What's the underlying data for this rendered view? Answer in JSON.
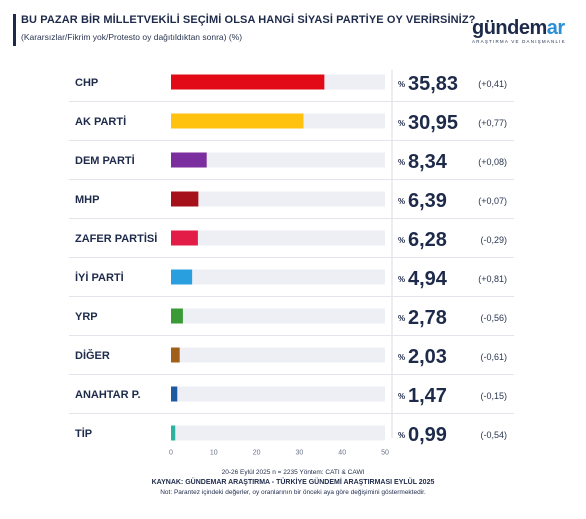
{
  "title": "BU PAZAR BİR MİLLETVEKİLİ SEÇİMİ OLSA HANGİ SİYASİ PARTİYE OY VERİRSİNİZ?",
  "subtitle": "(Kararsızlar/Fikrim yok/Protesto oy dağıtıldıktan sonra) (%)",
  "logo": {
    "text_main": "gündem",
    "text_accent": "ar",
    "tagline": "ARAŞTIRMA VE DANIŞMANLIK"
  },
  "footer": {
    "line1": "20-26 Eylül 2025 n = 2235 Yöntem: CATI & CAWI",
    "line2": "KAYNAK: GÜNDEMAR ARAŞTIRMA - TÜRKİYE GÜNDEMİ ARAŞTIRMASI EYLÜL 2025",
    "line3": "Not: Parantez içindeki değerler, oy oranlarının bir önceki aya göre değişimini göstermektedir."
  },
  "chart_data": {
    "type": "bar",
    "orientation": "horizontal",
    "percent_prefix": "%",
    "categories": [
      "CHP",
      "AK PARTİ",
      "DEM PARTİ",
      "MHP",
      "ZAFER PARTİSİ",
      "İYİ PARTİ",
      "YRP",
      "DİĞER",
      "ANAHTAR P.",
      "TİP"
    ],
    "values": [
      35.83,
      30.95,
      8.34,
      6.39,
      6.28,
      4.94,
      2.78,
      2.03,
      1.47,
      0.99
    ],
    "value_labels": [
      "35,83",
      "30,95",
      "8,34",
      "6,39",
      "6,28",
      "4,94",
      "2,78",
      "2,03",
      "1,47",
      "0,99"
    ],
    "changes": [
      "(+0,41)",
      "(+0,77)",
      "(+0,08)",
      "(+0,07)",
      "(-0,29)",
      "(+0,81)",
      "(-0,56)",
      "(-0,61)",
      "(-0,15)",
      "(-0,54)"
    ],
    "colors": [
      "#e30a17",
      "#ffc20e",
      "#7b2e9e",
      "#a5101a",
      "#e31b47",
      "#2a9fe0",
      "#3a9a35",
      "#a0601a",
      "#1f5aa0",
      "#2bb3a0"
    ],
    "track_color": "#eeeff5",
    "xlim": [
      0,
      50
    ],
    "xticks": [
      "0",
      "10",
      "20",
      "30",
      "40",
      "50"
    ],
    "xtick_values": [
      0,
      10,
      20,
      30,
      40,
      50
    ],
    "grid": false
  }
}
